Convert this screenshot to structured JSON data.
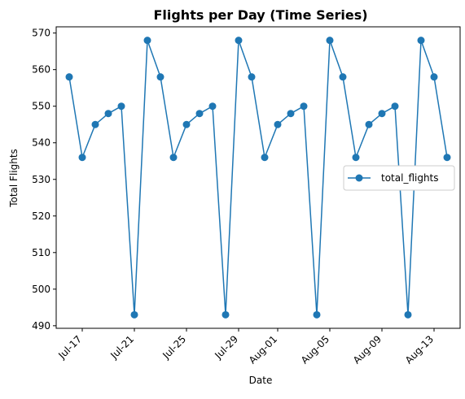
{
  "chart_data": {
    "type": "line",
    "title": "Flights per Day (Time Series)",
    "xlabel": "Date",
    "ylabel": "Total Flights",
    "x": [
      "2023-07-16",
      "2023-07-17",
      "2023-07-18",
      "2023-07-19",
      "2023-07-20",
      "2023-07-21",
      "2023-07-22",
      "2023-07-23",
      "2023-07-24",
      "2023-07-25",
      "2023-07-26",
      "2023-07-27",
      "2023-07-28",
      "2023-07-29",
      "2023-07-30",
      "2023-07-31",
      "2023-08-01",
      "2023-08-02",
      "2023-08-03",
      "2023-08-04",
      "2023-08-05",
      "2023-08-06",
      "2023-08-07",
      "2023-08-08",
      "2023-08-09",
      "2023-08-10",
      "2023-08-11",
      "2023-08-12",
      "2023-08-13",
      "2023-08-14"
    ],
    "series": [
      {
        "name": "total_flights",
        "color": "#1f77b4",
        "values": [
          558,
          536,
          545,
          548,
          550,
          493,
          568,
          558,
          536,
          545,
          548,
          550,
          493,
          568,
          558,
          536,
          545,
          548,
          550,
          493,
          568,
          558,
          536,
          545,
          548,
          550,
          493,
          568,
          558,
          536
        ]
      }
    ],
    "x_ticks": [
      {
        "date": "2023-07-17",
        "label": "Jul-17"
      },
      {
        "date": "2023-07-21",
        "label": "Jul-21"
      },
      {
        "date": "2023-07-25",
        "label": "Jul-25"
      },
      {
        "date": "2023-07-29",
        "label": "Jul-29"
      },
      {
        "date": "2023-08-01",
        "label": "Aug-01"
      },
      {
        "date": "2023-08-05",
        "label": "Aug-05"
      },
      {
        "date": "2023-08-09",
        "label": "Aug-09"
      },
      {
        "date": "2023-08-13",
        "label": "Aug-13"
      }
    ],
    "y_ticks": [
      490,
      500,
      510,
      520,
      530,
      540,
      550,
      560,
      570
    ],
    "xlim": [
      "2023-07-15",
      "2023-08-15"
    ],
    "ylim": [
      489.3,
      571.7
    ],
    "grid": false,
    "legend_position": "center-right",
    "marker": "circle"
  }
}
